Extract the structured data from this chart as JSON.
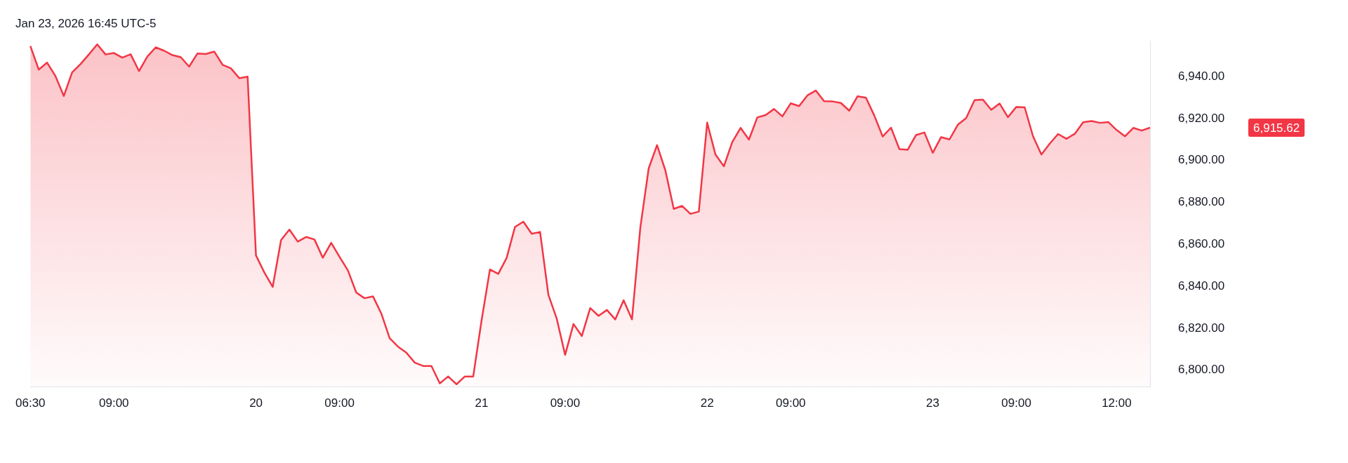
{
  "chart_data": {
    "type": "area",
    "title": "Jan 23, 2026 16:45 UTC-5",
    "categories": [
      "06:30",
      null,
      null,
      null,
      null,
      null,
      null,
      null,
      null,
      null,
      "09:00",
      null,
      null,
      null,
      null,
      null,
      null,
      null,
      null,
      null,
      null,
      null,
      null,
      null,
      null,
      null,
      null,
      "20",
      null,
      null,
      null,
      null,
      null,
      null,
      null,
      null,
      null,
      "09:00",
      null,
      null,
      null,
      null,
      null,
      null,
      null,
      null,
      null,
      null,
      null,
      null,
      null,
      null,
      null,
      null,
      "21",
      null,
      null,
      null,
      null,
      null,
      null,
      null,
      null,
      null,
      "09:00",
      null,
      null,
      null,
      null,
      null,
      null,
      null,
      null,
      null,
      null,
      null,
      null,
      null,
      null,
      null,
      null,
      "22",
      null,
      null,
      null,
      null,
      null,
      null,
      null,
      null,
      null,
      "09:00",
      null,
      null,
      null,
      null,
      null,
      null,
      null,
      null,
      null,
      null,
      null,
      null,
      null,
      null,
      null,
      null,
      "23",
      null,
      null,
      null,
      null,
      null,
      null,
      null,
      null,
      null,
      "09:00",
      null,
      null,
      null,
      null,
      null,
      null,
      null,
      null,
      null,
      null,
      null,
      "12:00",
      null,
      null,
      null,
      null
    ],
    "series": [
      {
        "color": "#f23645",
        "values": [
          6954.5,
          6943.3,
          6946.6,
          6940.2,
          6930.7,
          6942.0,
          6945.9,
          6950.5,
          6955.3,
          6950.5,
          6951.2,
          6949.0,
          6950.6,
          6942.6,
          6949.5,
          6953.9,
          6952.3,
          6950.2,
          6949.2,
          6944.7,
          6951.0,
          6950.7,
          6951.9,
          6945.6,
          6943.9,
          6939.2,
          6939.9,
          6854.7,
          6846.6,
          6839.7,
          6862.0,
          6867.0,
          6861.3,
          6863.5,
          6862.3,
          6853.6,
          6860.7,
          6854.0,
          6847.6,
          6837.0,
          6834.3,
          6835.2,
          6827.0,
          6815.2,
          6811.2,
          6808.3,
          6803.6,
          6802.0,
          6802.0,
          6793.7,
          6797.0,
          6793.3,
          6797.0,
          6797.0,
          6823.7,
          6848.0,
          6845.9,
          6853.5,
          6868.3,
          6870.8,
          6865.0,
          6865.9,
          6835.9,
          6824.5,
          6807.3,
          6822.0,
          6816.3,
          6829.6,
          6825.9,
          6828.7,
          6824.2,
          6833.3,
          6824.2,
          6868.0,
          6896.2,
          6907.3,
          6895.2,
          6876.9,
          6878.3,
          6874.5,
          6875.6,
          6918.0,
          6902.7,
          6897.2,
          6908.7,
          6915.5,
          6909.9,
          6920.5,
          6921.6,
          6924.5,
          6921.0,
          6927.2,
          6925.9,
          6931.0,
          6933.3,
          6928.2,
          6928.1,
          6927.4,
          6923.7,
          6930.6,
          6929.9,
          6921.4,
          6911.4,
          6915.6,
          6905.4,
          6905.1,
          6912.1,
          6913.3,
          6903.6,
          6911.1,
          6910.0,
          6917.0,
          6920.2,
          6928.7,
          6929.0,
          6924.1,
          6927.1,
          6920.6,
          6925.5,
          6925.3,
          6911.5,
          6902.8,
          6908.0,
          6912.6,
          6910.3,
          6912.7,
          6918.2,
          6918.8,
          6917.9,
          6918.3,
          6914.5,
          6911.5,
          6915.5,
          6914.2,
          6915.6
        ]
      }
    ],
    "ylim": [
      6792,
      6957
    ],
    "yticks": [
      {
        "value": 6800,
        "label": "6,800.00"
      },
      {
        "value": 6820,
        "label": "6,820.00"
      },
      {
        "value": 6840,
        "label": "6,840.00"
      },
      {
        "value": 6860,
        "label": "6,860.00"
      },
      {
        "value": 6880,
        "label": "6,880.00"
      },
      {
        "value": 6900,
        "label": "6,900.00"
      },
      {
        "value": 6920,
        "label": "6,920.00"
      },
      {
        "value": 6940,
        "label": "6,940.00"
      }
    ],
    "annotations": [
      "6,915.62"
    ],
    "grid": false,
    "legend": false
  }
}
